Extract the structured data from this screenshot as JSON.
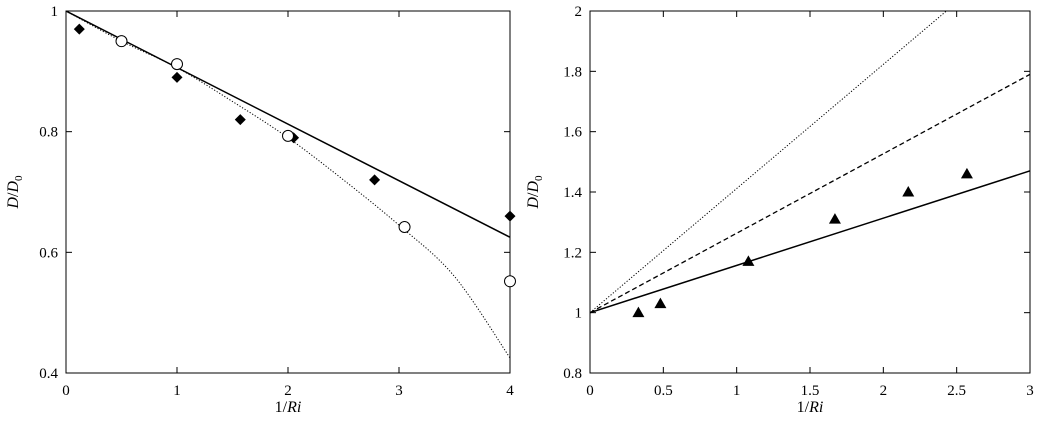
{
  "chart_data": [
    {
      "type": "scatter",
      "xlabel_prefix": "1/",
      "xlabel_var": "Ri",
      "ylabel_var": "D",
      "ylabel_sep": "/",
      "ylabel_sub": "0",
      "xlim": [
        0,
        4
      ],
      "ylim": [
        0.4,
        1.0
      ],
      "xticks": [
        0,
        1,
        2,
        3,
        4
      ],
      "xtick_labels": [
        "0",
        "1",
        "2",
        "3",
        "4"
      ],
      "yticks": [
        0.4,
        0.6,
        0.8,
        1.0
      ],
      "ytick_labels": [
        "0.4",
        "0.6",
        "0.8",
        "1"
      ],
      "grid": false,
      "series": [
        {
          "marker": "filled-diamond",
          "x": [
            0.12,
            1.0,
            1.57,
            2.05,
            2.78,
            4.0
          ],
          "y": [
            0.97,
            0.89,
            0.82,
            0.79,
            0.72,
            0.66
          ]
        },
        {
          "marker": "open-circle",
          "x": [
            0.5,
            1.0,
            2.0,
            3.05,
            4.0
          ],
          "y": [
            0.95,
            0.912,
            0.793,
            0.642,
            0.552
          ]
        },
        {
          "style": "solid-line",
          "x": [
            0,
            4
          ],
          "y": [
            1.0,
            0.625
          ]
        },
        {
          "style": "dotted-curve",
          "x": [
            0,
            0.5,
            1.0,
            1.5,
            2.0,
            2.5,
            3.0,
            3.5,
            4.0
          ],
          "y": [
            1.0,
            0.95,
            0.906,
            0.85,
            0.79,
            0.72,
            0.645,
            0.56,
            0.425
          ]
        }
      ]
    },
    {
      "type": "scatter",
      "xlabel_prefix": "1/",
      "xlabel_var": "Ri",
      "ylabel_var": "D",
      "ylabel_sep": "/",
      "ylabel_sub": "0",
      "xlim": [
        0,
        3
      ],
      "ylim": [
        0.8,
        2.0
      ],
      "xticks": [
        0,
        0.5,
        1,
        1.5,
        2,
        2.5,
        3
      ],
      "xtick_labels": [
        "0",
        "0.5",
        "1",
        "1.5",
        "2",
        "2.5",
        "3"
      ],
      "yticks": [
        0.8,
        1.0,
        1.2,
        1.4,
        1.6,
        1.8,
        2.0
      ],
      "ytick_labels": [
        "0.8",
        "1",
        "1.2",
        "1.4",
        "1.6",
        "1.8",
        "2"
      ],
      "grid": false,
      "series": [
        {
          "marker": "filled-triangle",
          "x": [
            0.33,
            0.48,
            1.08,
            1.67,
            2.17,
            2.57
          ],
          "y": [
            1.0,
            1.03,
            1.17,
            1.31,
            1.4,
            1.46
          ]
        },
        {
          "style": "solid-line",
          "x": [
            0,
            3
          ],
          "y": [
            1.0,
            1.47
          ]
        },
        {
          "style": "dashed-line",
          "x": [
            0,
            3
          ],
          "y": [
            1.0,
            1.79
          ]
        },
        {
          "style": "dotted-line",
          "x": [
            0,
            2.43
          ],
          "y": [
            1.0,
            2.0
          ]
        }
      ]
    }
  ]
}
